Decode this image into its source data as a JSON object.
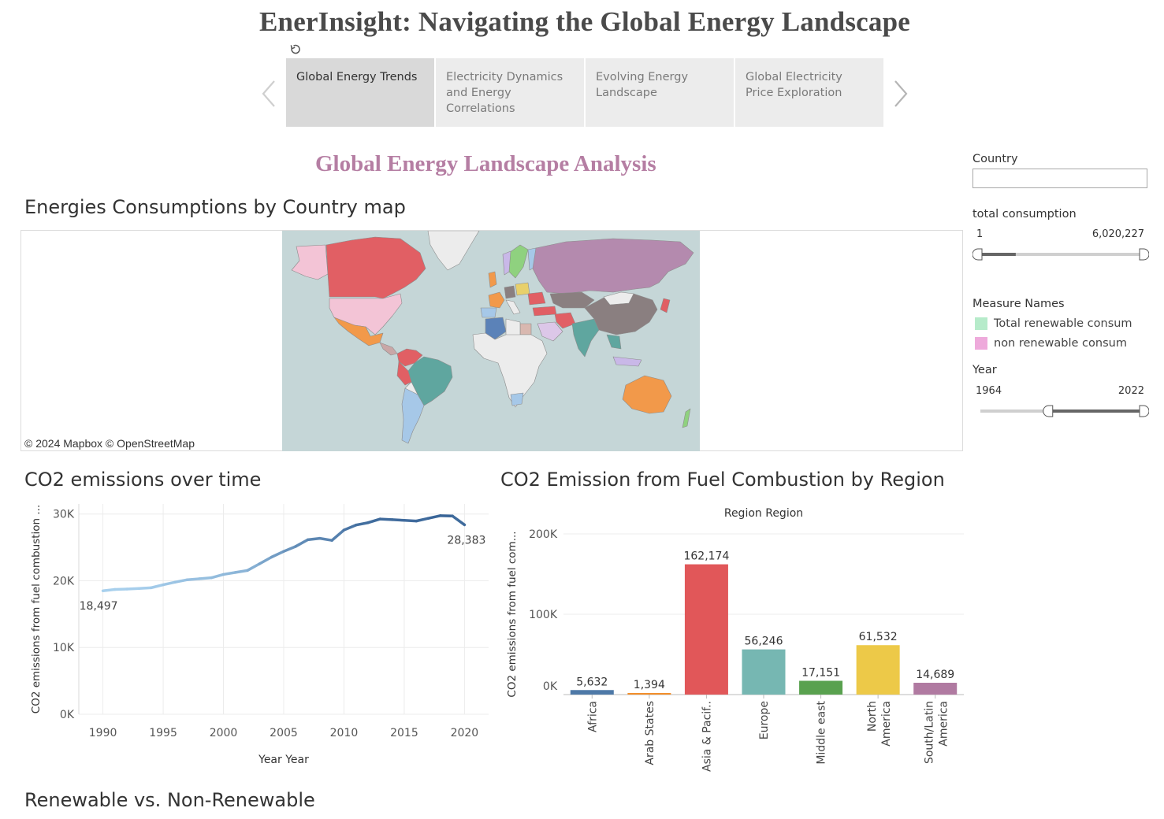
{
  "header": {
    "title": "EnerInsight: Navigating the Global Energy Landscape",
    "revert_icon": "revert-icon"
  },
  "story": {
    "prev_icon": "chevron-left-icon",
    "next_icon": "chevron-right-icon",
    "tabs": [
      {
        "label": "Global Energy Trends",
        "active": true
      },
      {
        "label": "Electricity Dynamics and Energy Correlations",
        "active": false
      },
      {
        "label": "Evolving Energy Landscape",
        "active": false
      },
      {
        "label": "Global Electricity Price Exploration",
        "active": false
      }
    ]
  },
  "dashboard": {
    "subtitle": "Global Energy Landscape Analysis"
  },
  "map": {
    "title": "Energies Consumptions by Country map",
    "credit": "© 2024 Mapbox  © OpenStreetMap",
    "ocean_color": "#c5d6d7"
  },
  "filters": {
    "country": {
      "label": "Country",
      "value": ""
    },
    "total_consumption": {
      "label": "total consumption",
      "min": "1",
      "max": "6,020,227",
      "handle_low": 0.0,
      "handle_high": 1.0,
      "fill_to": 0.22
    },
    "measure_names": {
      "label": "Measure Names",
      "items": [
        {
          "label": "Total renewable consum",
          "color": "#b6ebca"
        },
        {
          "label": "non renewable consum",
          "color": "#eeaadb"
        }
      ]
    },
    "year": {
      "label": "Year",
      "min": "1964",
      "max": "2022",
      "handle_low": 0.44,
      "handle_high": 1.0
    }
  },
  "co2_time": {
    "title": "CO2 emissions over time",
    "label_start": "18,497",
    "label_end": "28,383"
  },
  "co2_region": {
    "title": "CO2 Emission from Fuel Combustion by Region"
  },
  "renewable": {
    "title": "Renewable vs. Non-Renewable"
  },
  "chart_data": [
    {
      "type": "line",
      "title": "CO2 emissions over time",
      "xlabel": "Year Year",
      "ylabel": "CO2 emissions from fuel combustion ...",
      "x": [
        1990,
        1991,
        1992,
        1993,
        1994,
        1995,
        1996,
        1997,
        1998,
        1999,
        2000,
        2001,
        2002,
        2003,
        2004,
        2005,
        2006,
        2007,
        2008,
        2009,
        2010,
        2011,
        2012,
        2013,
        2014,
        2015,
        2016,
        2017,
        2018,
        2019,
        2020
      ],
      "values": [
        18497,
        18700,
        18760,
        18850,
        18950,
        19400,
        19800,
        20150,
        20300,
        20450,
        20950,
        21250,
        21550,
        22550,
        23550,
        24400,
        25150,
        26150,
        26350,
        26050,
        27600,
        28350,
        28700,
        29250,
        29150,
        29050,
        28950,
        29350,
        29750,
        29700,
        28383
      ],
      "xticks": [
        "1990",
        "1995",
        "2000",
        "2005",
        "2010",
        "2015",
        "2020"
      ],
      "yticks": [
        "0K",
        "10K",
        "20K",
        "30K"
      ],
      "xlim": [
        1988,
        2022
      ],
      "ylim": [
        0,
        31500
      ],
      "color_low": "#a9d1ee",
      "color_high": "#386497",
      "grid": true
    },
    {
      "type": "bar",
      "title": "CO2 Emission from Fuel Combustion by Region",
      "header": "Region Region",
      "ylabel": "CO2 emissions from fuel com...",
      "categories": [
        "Africa",
        "Arab States",
        "Asia & Pacif..",
        "Europe",
        "Middle east",
        "North America",
        "South/Latin America"
      ],
      "category_lines": [
        [
          "Africa"
        ],
        [
          "Arab States"
        ],
        [
          "Asia & Pacif.."
        ],
        [
          "Europe"
        ],
        [
          "Middle east"
        ],
        [
          "North",
          "America"
        ],
        [
          "South/Latin",
          "America"
        ]
      ],
      "values": [
        5632,
        1394,
        162174,
        56246,
        17151,
        61532,
        14689
      ],
      "value_labels": [
        "5,632",
        "1,394",
        "162,174",
        "56,246",
        "17,151",
        "61,532",
        "14,689"
      ],
      "colors": [
        "#4e79a7",
        "#f28e2b",
        "#e15759",
        "#76b7b2",
        "#59a14f",
        "#edc948",
        "#b07aa1"
      ],
      "yticks": [
        "0K",
        "100K",
        "200K"
      ],
      "ylim": [
        0,
        200000
      ],
      "grid": true
    }
  ]
}
